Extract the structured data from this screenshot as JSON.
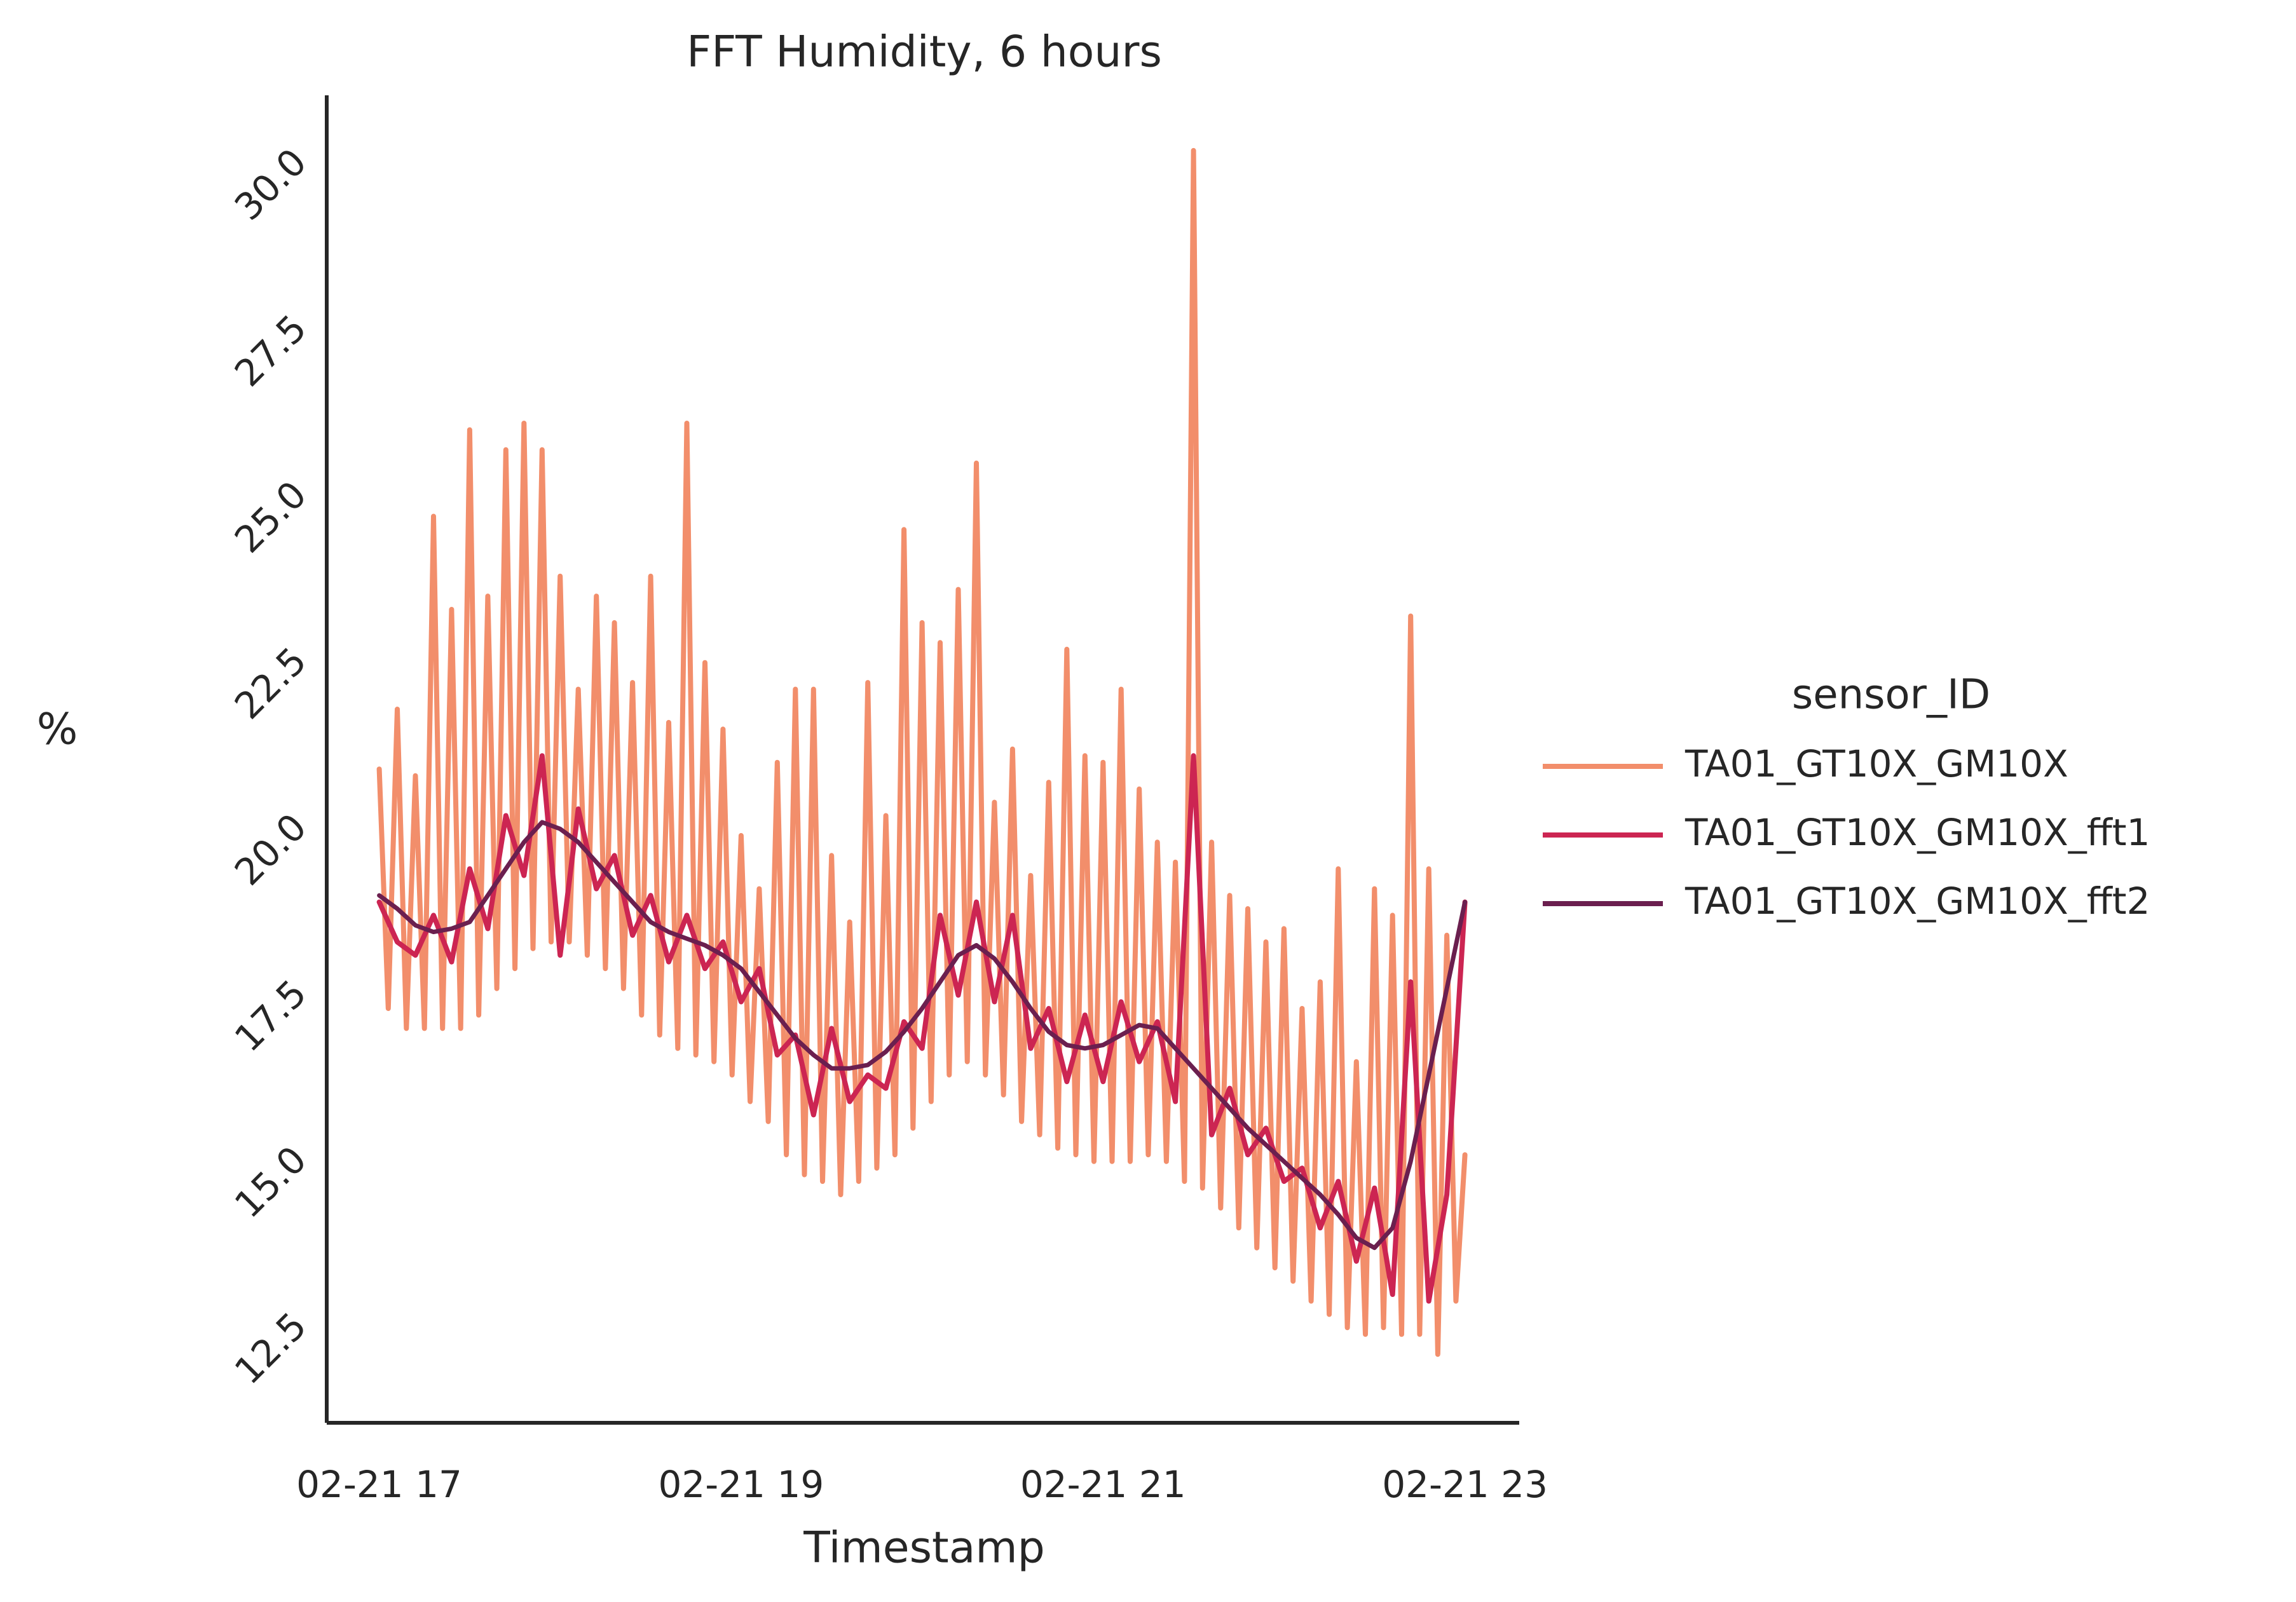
{
  "chart_data": {
    "type": "line",
    "title": "FFT Humidity, 6 hours",
    "x_label": "Timestamp",
    "y_label": "%",
    "legend_title": "sensor_ID",
    "legend": "right",
    "xlim": [
      16.71,
      23.3
    ],
    "ylim": [
      10.97,
      30.93
    ],
    "xticks": [
      {
        "value": 17,
        "label": "02-21 17"
      },
      {
        "value": 19,
        "label": "02-21 19"
      },
      {
        "value": 21,
        "label": "02-21 21"
      },
      {
        "value": 23,
        "label": "02-21 23"
      }
    ],
    "yticks": [
      12.5,
      {
        "value": 15,
        "label": "15.0"
      },
      17.5,
      {
        "value": 20,
        "label": "20.0"
      },
      22.5,
      {
        "value": 25,
        "label": "25.0"
      },
      27.5,
      {
        "value": 30,
        "label": "30.0"
      }
    ],
    "series": [
      {
        "name": "TA01_GT10X_GM10X",
        "color": "#f28e6b",
        "x": [
          17.0,
          17.05,
          17.1,
          17.15,
          17.2,
          17.25,
          17.3,
          17.35,
          17.4,
          17.45,
          17.5,
          17.55,
          17.6,
          17.65,
          17.7,
          17.75,
          17.8,
          17.85,
          17.9,
          17.95,
          18.0,
          18.05,
          18.1,
          18.15,
          18.2,
          18.25,
          18.3,
          18.35,
          18.4,
          18.45,
          18.5,
          18.55,
          18.6,
          18.65,
          18.7,
          18.75,
          18.8,
          18.85,
          18.9,
          18.95,
          19.0,
          19.05,
          19.1,
          19.15,
          19.2,
          19.25,
          19.3,
          19.35,
          19.4,
          19.45,
          19.5,
          19.55,
          19.6,
          19.65,
          19.7,
          19.75,
          19.8,
          19.85,
          19.9,
          19.95,
          20.0,
          20.05,
          20.1,
          20.15,
          20.2,
          20.25,
          20.3,
          20.35,
          20.4,
          20.45,
          20.5,
          20.55,
          20.6,
          20.65,
          20.7,
          20.75,
          20.8,
          20.85,
          20.9,
          20.95,
          21.0,
          21.05,
          21.1,
          21.15,
          21.2,
          21.25,
          21.3,
          21.35,
          21.4,
          21.45,
          21.5,
          21.55,
          21.6,
          21.65,
          21.7,
          21.75,
          21.8,
          21.85,
          21.9,
          21.95,
          22.0,
          22.05,
          22.1,
          22.15,
          22.2,
          22.25,
          22.3,
          22.35,
          22.4,
          22.45,
          22.5,
          22.55,
          22.6,
          22.65,
          22.7,
          22.75,
          22.8,
          22.85,
          22.9,
          22.95,
          23.0
        ],
        "values": [
          20.8,
          17.2,
          21.7,
          16.9,
          20.7,
          16.9,
          24.6,
          16.9,
          23.2,
          16.9,
          25.9,
          17.1,
          23.4,
          17.5,
          25.6,
          17.8,
          26.0,
          18.1,
          25.6,
          18.2,
          23.7,
          18.2,
          22.0,
          18.0,
          23.4,
          17.8,
          23.0,
          17.5,
          22.1,
          17.1,
          23.7,
          16.8,
          21.5,
          16.6,
          26.0,
          16.5,
          22.4,
          16.4,
          21.4,
          16.2,
          19.8,
          15.8,
          19.0,
          15.5,
          20.9,
          15.0,
          22.0,
          14.7,
          22.0,
          14.6,
          19.5,
          14.4,
          18.5,
          14.6,
          22.1,
          14.8,
          20.1,
          15.0,
          24.4,
          15.4,
          23.0,
          15.8,
          22.7,
          16.2,
          23.5,
          16.4,
          25.4,
          16.2,
          20.3,
          15.9,
          21.1,
          15.5,
          19.2,
          15.3,
          20.6,
          15.1,
          22.6,
          15.0,
          21.0,
          14.9,
          20.9,
          14.9,
          22.0,
          14.9,
          20.5,
          15.0,
          19.7,
          14.9,
          19.4,
          14.6,
          30.1,
          14.5,
          19.7,
          14.2,
          18.9,
          13.9,
          18.7,
          13.6,
          18.2,
          13.3,
          18.4,
          13.1,
          17.2,
          12.8,
          17.6,
          12.6,
          19.3,
          12.4,
          16.4,
          12.3,
          19.0,
          12.4,
          18.6,
          12.3,
          23.1,
          12.3,
          19.3,
          12.0,
          18.3,
          12.8,
          15.0
        ]
      },
      {
        "name": "TA01_GT10X_GM10X_fft1",
        "color": "#cc2552",
        "x": [
          17.0,
          17.1,
          17.2,
          17.3,
          17.4,
          17.5,
          17.6,
          17.7,
          17.8,
          17.9,
          18.0,
          18.1,
          18.2,
          18.3,
          18.4,
          18.5,
          18.6,
          18.7,
          18.8,
          18.9,
          19.0,
          19.1,
          19.2,
          19.3,
          19.4,
          19.5,
          19.6,
          19.7,
          19.8,
          19.9,
          20.0,
          20.1,
          20.2,
          20.3,
          20.4,
          20.5,
          20.6,
          20.7,
          20.8,
          20.9,
          21.0,
          21.1,
          21.2,
          21.3,
          21.4,
          21.5,
          21.6,
          21.7,
          21.8,
          21.9,
          22.0,
          22.1,
          22.2,
          22.3,
          22.4,
          22.5,
          22.6,
          22.7,
          22.8,
          22.9,
          23.0
        ],
        "values": [
          18.8,
          18.2,
          18.0,
          18.6,
          17.9,
          19.3,
          18.4,
          20.1,
          19.2,
          21.0,
          18.0,
          20.2,
          19.0,
          19.5,
          18.3,
          18.9,
          17.9,
          18.6,
          17.8,
          18.2,
          17.3,
          17.8,
          16.5,
          16.8,
          15.6,
          16.9,
          15.8,
          16.2,
          16.0,
          17.0,
          16.6,
          18.6,
          17.4,
          18.8,
          17.3,
          18.6,
          16.6,
          17.2,
          16.1,
          17.1,
          16.1,
          17.3,
          16.4,
          17.0,
          15.8,
          21.0,
          15.3,
          16.0,
          15.0,
          15.4,
          14.6,
          14.8,
          13.9,
          14.6,
          13.4,
          14.5,
          12.9,
          17.6,
          12.8,
          14.4,
          18.8
        ]
      },
      {
        "name": "TA01_GT10X_GM10X_fft2",
        "color": "#6b1f4f",
        "x": [
          17.0,
          17.1,
          17.2,
          17.3,
          17.4,
          17.5,
          17.6,
          17.7,
          17.8,
          17.9,
          18.0,
          18.1,
          18.2,
          18.3,
          18.4,
          18.5,
          18.6,
          18.7,
          18.8,
          18.9,
          19.0,
          19.1,
          19.2,
          19.3,
          19.4,
          19.5,
          19.6,
          19.7,
          19.8,
          19.9,
          20.0,
          20.1,
          20.2,
          20.3,
          20.4,
          20.5,
          20.6,
          20.7,
          20.8,
          20.9,
          21.0,
          21.1,
          21.2,
          21.3,
          21.4,
          21.5,
          21.6,
          21.7,
          21.8,
          21.9,
          22.0,
          22.1,
          22.2,
          22.3,
          22.4,
          22.5,
          22.6,
          22.7,
          22.8,
          22.9,
          23.0
        ],
        "values": [
          18.9,
          18.7,
          18.45,
          18.35,
          18.4,
          18.5,
          18.9,
          19.3,
          19.7,
          20.0,
          19.9,
          19.7,
          19.4,
          19.1,
          18.8,
          18.5,
          18.35,
          18.25,
          18.15,
          18.0,
          17.8,
          17.45,
          17.1,
          16.75,
          16.5,
          16.3,
          16.3,
          16.35,
          16.55,
          16.85,
          17.2,
          17.6,
          18.0,
          18.15,
          17.95,
          17.6,
          17.2,
          16.85,
          16.65,
          16.6,
          16.65,
          16.8,
          16.95,
          16.9,
          16.6,
          16.3,
          16.0,
          15.7,
          15.4,
          15.15,
          14.9,
          14.65,
          14.4,
          14.1,
          13.75,
          13.6,
          13.9,
          14.9,
          16.2,
          17.5,
          18.8
        ]
      }
    ]
  }
}
